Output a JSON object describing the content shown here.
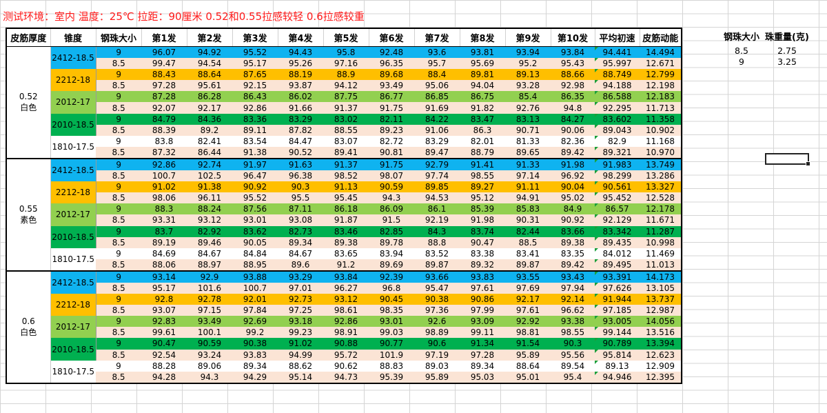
{
  "title": "测试环境：室内  温度：25℃  拉距：90厘米  0.52和0.55拉感较轻 0.6拉感较重",
  "colors": {
    "c0": "#0fb3f0",
    "c1": "#ffbf00",
    "c2": "#92d050",
    "c3": "#00b050",
    "c4": "#ffffff",
    "sub": "#fbe4d5"
  },
  "headers": [
    "皮筋厚度",
    "锥度",
    "钢珠大小",
    "第1发",
    "第2发",
    "第3发",
    "第4发",
    "第5发",
    "第6发",
    "第7发",
    "第8发",
    "第9发",
    "第10发",
    "平均初速",
    "皮筋动能"
  ],
  "groups": [
    {
      "thickness": "0.52",
      "color_label": "白色",
      "models": [
        {
          "name": "2412-18.5",
          "rows": [
            [
              "9",
              "96.07",
              "94.92",
              "95.52",
              "94.43",
              "95.8",
              "92.48",
              "93.6",
              "93.81",
              "93.94",
              "93.84",
              "94.441",
              "14.494"
            ],
            [
              "8.5",
              "99.47",
              "94.54",
              "95.17",
              "95.26",
              "97.16",
              "96.35",
              "95.7",
              "95.69",
              "95.2",
              "95.43",
              "95.997",
              "12.671"
            ]
          ]
        },
        {
          "name": "2212-18",
          "rows": [
            [
              "9",
              "88.43",
              "88.64",
              "87.65",
              "88.19",
              "88.9",
              "89.68",
              "88.4",
              "89.81",
              "89.13",
              "88.66",
              "88.749",
              "12.799"
            ],
            [
              "8.5",
              "97.28",
              "95.61",
              "92.15",
              "93.87",
              "94.12",
              "93.49",
              "95.06",
              "94.04",
              "93.28",
              "92.98",
              "94.188",
              "12.198"
            ]
          ]
        },
        {
          "name": "2012-17",
          "rows": [
            [
              "9",
              "87.28",
              "86.28",
              "86.43",
              "86.02",
              "87.75",
              "86.77",
              "86.85",
              "86.75",
              "85.4",
              "86.35",
              "86.588",
              "12.183"
            ],
            [
              "8.5",
              "92.07",
              "92.17",
              "92.86",
              "91.66",
              "91.37",
              "91.75",
              "91.69",
              "91.82",
              "92.76",
              "94.8",
              "92.295",
              "11.713"
            ]
          ]
        },
        {
          "name": "2010-18.5",
          "rows": [
            [
              "9",
              "84.79",
              "84.36",
              "83.36",
              "83.29",
              "83.02",
              "82.11",
              "84.22",
              "83.47",
              "83.13",
              "84.27",
              "83.602",
              "11.358"
            ],
            [
              "8.5",
              "88.39",
              "89.2",
              "89.11",
              "87.82",
              "88.55",
              "89.23",
              "91.06",
              "86.3",
              "90.71",
              "90.06",
              "89.043",
              "10.902"
            ]
          ]
        },
        {
          "name": "1810-17.5",
          "rows": [
            [
              "9",
              "83.8",
              "82.41",
              "83.54",
              "84.47",
              "83.07",
              "82.72",
              "83.29",
              "82.01",
              "81.33",
              "82.36",
              "82.9",
              "11.168"
            ],
            [
              "8.5",
              "87.32",
              "86.44",
              "91.38",
              "90.52",
              "89.41",
              "90.81",
              "89.47",
              "88.79",
              "89.65",
              "89.42",
              "89.321",
              "10.970"
            ]
          ]
        }
      ]
    },
    {
      "thickness": "0.55",
      "color_label": "素色",
      "models": [
        {
          "name": "2412-18.5",
          "rows": [
            [
              "9",
              "92.86",
              "92.74",
              "91.97",
              "91.63",
              "91.37",
              "91.75",
              "92.79",
              "91.41",
              "91.33",
              "91.98",
              "91.983",
              "13.749"
            ],
            [
              "8.5",
              "100.7",
              "102.5",
              "96.47",
              "96.38",
              "98.52",
              "98.07",
              "97.74",
              "98.55",
              "97.14",
              "96.92",
              "98.299",
              "13.286"
            ]
          ]
        },
        {
          "name": "2212-18",
          "rows": [
            [
              "9",
              "91.02",
              "91.38",
              "90.92",
              "90.3",
              "91.13",
              "90.59",
              "89.85",
              "89.27",
              "91.11",
              "90.04",
              "90.561",
              "13.327"
            ],
            [
              "8.5",
              "98.06",
              "96.11",
              "95.52",
              "95.5",
              "95.45",
              "94.3",
              "94.53",
              "95.12",
              "94.91",
              "95.02",
              "95.452",
              "12.528"
            ]
          ]
        },
        {
          "name": "2012-17",
          "rows": [
            [
              "9",
              "88.3",
              "88.24",
              "87.56",
              "87.11",
              "86.18",
              "86.09",
              "86.1",
              "85.39",
              "85.83",
              "84.9",
              "86.57",
              "12.178"
            ],
            [
              "8.5",
              "93.31",
              "93.12",
              "93.01",
              "93.08",
              "91.87",
              "91.5",
              "92.19",
              "91.98",
              "90.31",
              "90.92",
              "92.129",
              "11.671"
            ]
          ]
        },
        {
          "name": "2010-18.5",
          "rows": [
            [
              "9",
              "83.7",
              "82.92",
              "83.62",
              "82.73",
              "83.46",
              "82.85",
              "84.3",
              "83.74",
              "82.44",
              "83.66",
              "83.342",
              "11.287"
            ],
            [
              "8.5",
              "89.19",
              "89.46",
              "90.05",
              "89.34",
              "89.38",
              "89.78",
              "88.8",
              "90.47",
              "88.5",
              "89.38",
              "89.435",
              "10.998"
            ]
          ]
        },
        {
          "name": "1810-17.5",
          "rows": [
            [
              "9",
              "84.69",
              "84.67",
              "84.84",
              "84.67",
              "83.65",
              "83.94",
              "83.52",
              "83.38",
              "83.41",
              "83.35",
              "84.012",
              "11.469"
            ],
            [
              "8.5",
              "88.06",
              "88.97",
              "88.95",
              "89.6",
              "91.2",
              "89.69",
              "89.87",
              "89.32",
              "89.87",
              "89.42",
              "89.495",
              "11.013"
            ]
          ]
        }
      ]
    },
    {
      "thickness": "0.6",
      "color_label": "白色",
      "models": [
        {
          "name": "2412-18.5",
          "rows": [
            [
              "9",
              "93.14",
              "92.9",
              "93.88",
              "93.29",
              "93.84",
              "92.39",
              "93.66",
              "93.83",
              "93.55",
              "93.43",
              "93.391",
              "14.173"
            ],
            [
              "8.5",
              "95.17",
              "101.6",
              "100.7",
              "97.01",
              "96.27",
              "96.8",
              "95.47",
              "97.61",
              "97.69",
              "97.94",
              "97.626",
              "13.105"
            ]
          ]
        },
        {
          "name": "2212-18",
          "rows": [
            [
              "9",
              "92.8",
              "92.78",
              "92.01",
              "92.73",
              "93.12",
              "90.45",
              "90.38",
              "90.86",
              "92.17",
              "92.14",
              "91.944",
              "13.737"
            ],
            [
              "8.5",
              "93.07",
              "97.15",
              "97.84",
              "97.25",
              "98.61",
              "98.35",
              "97.36",
              "97.99",
              "97.61",
              "96.62",
              "97.185",
              "12.987"
            ]
          ]
        },
        {
          "name": "2012-17",
          "rows": [
            [
              "9",
              "92.83",
              "93.49",
              "92.69",
              "93.18",
              "92.86",
              "93.01",
              "92.6",
              "93.09",
              "92.92",
              "93.38",
              "93.005",
              "14.056"
            ],
            [
              "8.5",
              "99.61",
              "100.1",
              "99.2",
              "99.23",
              "98.91",
              "99.03",
              "98.89",
              "99.11",
              "98.81",
              "98.55",
              "99.144",
              "13.516"
            ]
          ]
        },
        {
          "name": "2010-18.5",
          "rows": [
            [
              "9",
              "90.47",
              "90.59",
              "90.38",
              "91.02",
              "90.88",
              "90.77",
              "90.6",
              "91.34",
              "91.54",
              "90.3",
              "90.789",
              "13.394"
            ],
            [
              "8.5",
              "92.54",
              "93.24",
              "93.83",
              "94.99",
              "95.72",
              "101.9",
              "97.19",
              "97.28",
              "95.89",
              "95.56",
              "95.814",
              "12.623"
            ]
          ]
        },
        {
          "name": "1810-17.5",
          "rows": [
            [
              "9",
              "88.28",
              "89.06",
              "89.34",
              "88.62",
              "90.62",
              "88.83",
              "89.03",
              "89.34",
              "88.64",
              "89.54",
              "89.13",
              "12.909"
            ],
            [
              "8.5",
              "94.28",
              "94.3",
              "94.29",
              "95.14",
              "94.73",
              "95.39",
              "95.89",
              "95.03",
              "95.01",
              "95.4",
              "94.946",
              "12.395"
            ]
          ]
        }
      ]
    }
  ],
  "side_table": {
    "headers": [
      "钢珠大小",
      "珠重量(克)"
    ],
    "rows": [
      [
        "8.5",
        "2.75"
      ],
      [
        "9",
        "3.25"
      ]
    ]
  }
}
